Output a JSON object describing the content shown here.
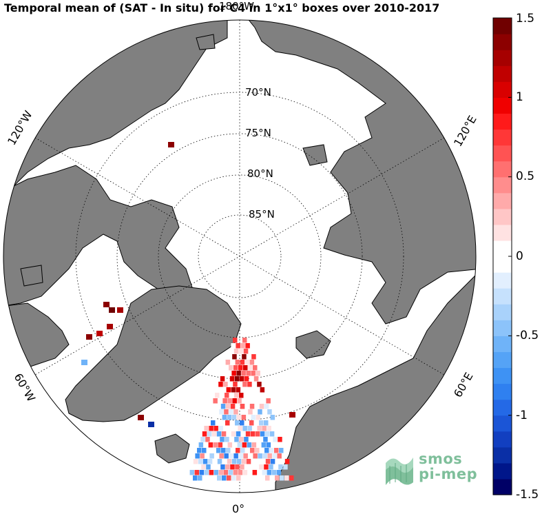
{
  "title": "Temporal mean of (SAT - In situ) for C4 in 1°x1° boxes over 2010-2017",
  "map": {
    "projection": "north-polar-stereographic",
    "land_color": "#808080",
    "ocean_color": "#ffffff",
    "latitude_labels": [
      "70°N",
      "75°N",
      "80°N",
      "85°N"
    ],
    "longitude_labels": [
      "180°W",
      "120°E",
      "60°E",
      "0°",
      "60°W",
      "120°W"
    ]
  },
  "colorbar": {
    "ticks": [
      "1.5",
      "1",
      "0.5",
      "0",
      "-0.5",
      "-1",
      "-1.5"
    ],
    "vmin": -1.5,
    "vmax": 1.5,
    "colors": [
      "#000066",
      "#00168a",
      "#0a2fa6",
      "#123fc0",
      "#1b55d6",
      "#2469e6",
      "#2f80f0",
      "#3e92f4",
      "#55a3f6",
      "#6fb3f8",
      "#8cc3fa",
      "#a9d2fb",
      "#c6e1fd",
      "#e2effe",
      "#ffffff",
      "#ffffff",
      "#ffe2e2",
      "#ffc6c6",
      "#ffaaaa",
      "#ff8d8d",
      "#ff7070",
      "#ff5353",
      "#ff3737",
      "#ff1a1a",
      "#f00000",
      "#d90000",
      "#c00000",
      "#a60000",
      "#8c0000",
      "#700000"
    ]
  },
  "logo": {
    "line1": "smos",
    "line2": "pi-mep",
    "color": "#7fbf9b"
  }
}
